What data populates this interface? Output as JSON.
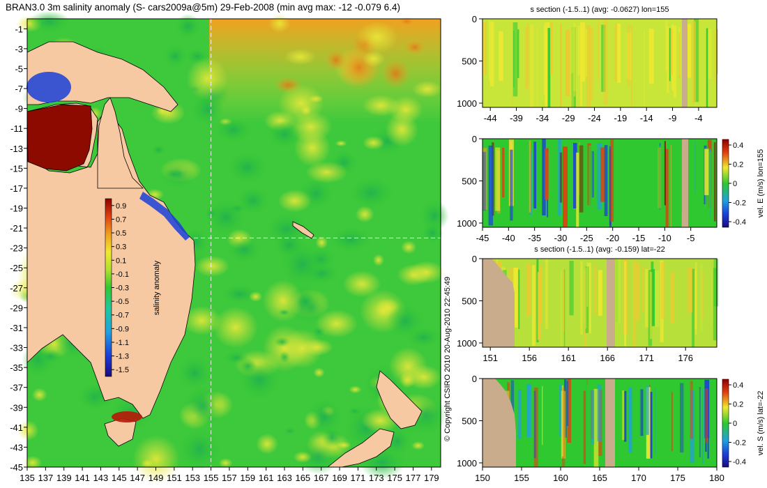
{
  "chart_data": [
    {
      "type": "heatmap",
      "title": "BRAN3.0 3m salinity anomaly (S- cars2009a@5m) 29-Feb-2008 (min avg max: -12 -0.079 6.4)",
      "x_ticks": [
        "135",
        "137",
        "139",
        "141",
        "143",
        "145",
        "147",
        "149",
        "151",
        "153",
        "155",
        "157",
        "159",
        "161",
        "163",
        "165",
        "167",
        "169",
        "171",
        "173",
        "175",
        "177",
        "179"
      ],
      "y_ticks": [
        "-1",
        "-3",
        "-5",
        "-7",
        "-9",
        "-11",
        "-13",
        "-15",
        "-17",
        "-19",
        "-21",
        "-23",
        "-25",
        "-27",
        "-29",
        "-31",
        "-33",
        "-35",
        "-37",
        "-39",
        "-41",
        "-43",
        "-45"
      ],
      "xlim": [
        135,
        180
      ],
      "ylim": [
        -45,
        0
      ],
      "crosshair": {
        "lon": 155,
        "lat": -22
      },
      "colorbar": {
        "label": "salinity anomaly",
        "ticks": [
          "0.9",
          "0.7",
          "0.5",
          "0.3",
          "0.1",
          "-0.1",
          "-0.3",
          "-0.5",
          "-0.7",
          "-0.9",
          "-1.1",
          "-1.3",
          "-1.5"
        ],
        "range": [
          -1.6,
          1.0
        ]
      }
    },
    {
      "type": "heatmap",
      "title": "s section (-1.5..1) (avg: -0.0627) lon=155",
      "x_ticks": [
        "-44",
        "-39",
        "-34",
        "-29",
        "-24",
        "-19",
        "-14",
        "-9",
        "-4"
      ],
      "y_ticks": [
        "0",
        "500",
        "1000"
      ],
      "ylim": [
        1050,
        0
      ]
    },
    {
      "type": "heatmap",
      "title": "",
      "x_ticks": [
        "-45",
        "-40",
        "-35",
        "-30",
        "-25",
        "-20",
        "-15",
        "-10",
        "-5"
      ],
      "y_ticks": [
        "0",
        "500",
        "1000"
      ],
      "ylim": [
        1050,
        0
      ],
      "colorbar": {
        "label": "vel. E (m/s) lon=155",
        "ticks": [
          "0.4",
          "0.2",
          "0",
          "-0.2",
          "-0.4"
        ]
      }
    },
    {
      "type": "heatmap",
      "title": "s section (-1.5..1) (avg: -0.159) lat=-22",
      "x_ticks": [
        "151",
        "156",
        "161",
        "166",
        "171",
        "176"
      ],
      "y_ticks": [
        "0",
        "500",
        "1000"
      ],
      "ylim": [
        1050,
        0
      ]
    },
    {
      "type": "heatmap",
      "title": "",
      "x_ticks": [
        "150",
        "155",
        "160",
        "165",
        "170",
        "175",
        "180"
      ],
      "y_ticks": [
        "0",
        "500",
        "1000"
      ],
      "ylim": [
        1050,
        0
      ],
      "colorbar": {
        "label": "vel. S (m/s) lat=-22",
        "ticks": [
          "0.4",
          "0.2",
          "0",
          "-0.2",
          "-0.4"
        ]
      }
    }
  ],
  "copyright": "© Copyright CSIRO 2010   20-Aug-2010 22:45:49",
  "colors": {
    "land": "#f7c9a2",
    "section_land": "#c8ac8c",
    "ocean_green": "#3ec83c",
    "ocean_yellow": "#e8e83a"
  }
}
